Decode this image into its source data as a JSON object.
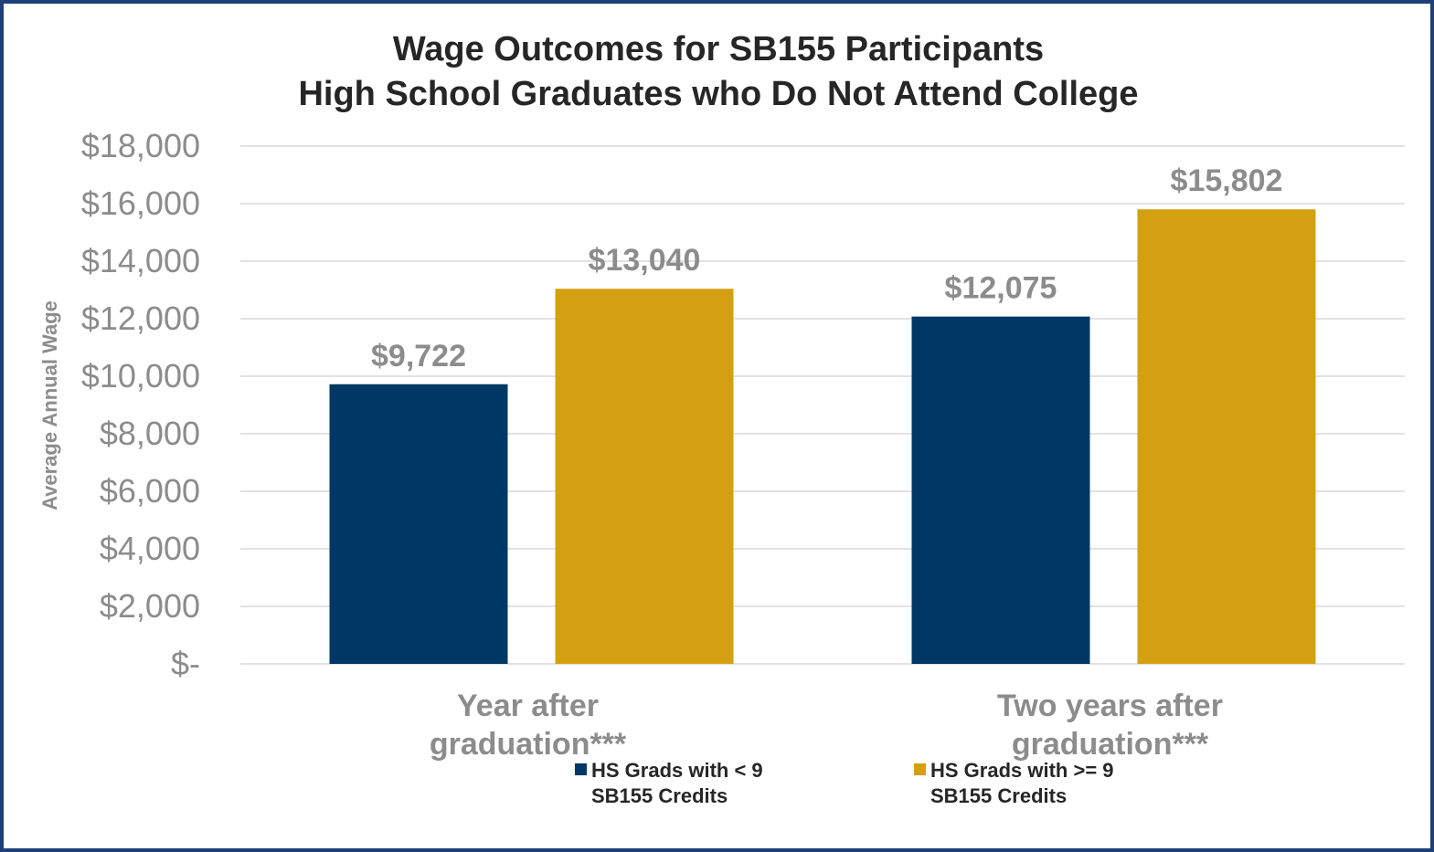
{
  "chart_data": {
    "type": "bar",
    "title_lines": [
      "Wage Outcomes for SB155 Participants",
      "High School Graduates who Do Not Attend College"
    ],
    "ylabel": "Average Annual Wage",
    "xlabel": "",
    "ylim": [
      0,
      18000
    ],
    "y_ticks": [
      0,
      2000,
      4000,
      6000,
      8000,
      10000,
      12000,
      14000,
      16000,
      18000
    ],
    "y_tick_labels": [
      "$-",
      "$2,000",
      "$4,000",
      "$6,000",
      "$8,000",
      "$10,000",
      "$12,000",
      "$14,000",
      "$16,000",
      "$18,000"
    ],
    "grid": true,
    "legend_position": "bottom",
    "categories": [
      [
        "Year after",
        "graduation***"
      ],
      [
        "Two years after",
        "graduation***"
      ]
    ],
    "series": [
      {
        "name_lines": [
          "HS Grads with < 9",
          "SB155 Credits"
        ],
        "color": "#003865",
        "values": [
          9722,
          12075
        ],
        "labels": [
          "$9,722",
          "$12,075"
        ]
      },
      {
        "name_lines": [
          "HS Grads with >= 9",
          "SB155 Credits"
        ],
        "color": "#d4a012",
        "values": [
          13040,
          15802
        ],
        "labels": [
          "$13,040",
          "$15,802"
        ]
      }
    ]
  }
}
